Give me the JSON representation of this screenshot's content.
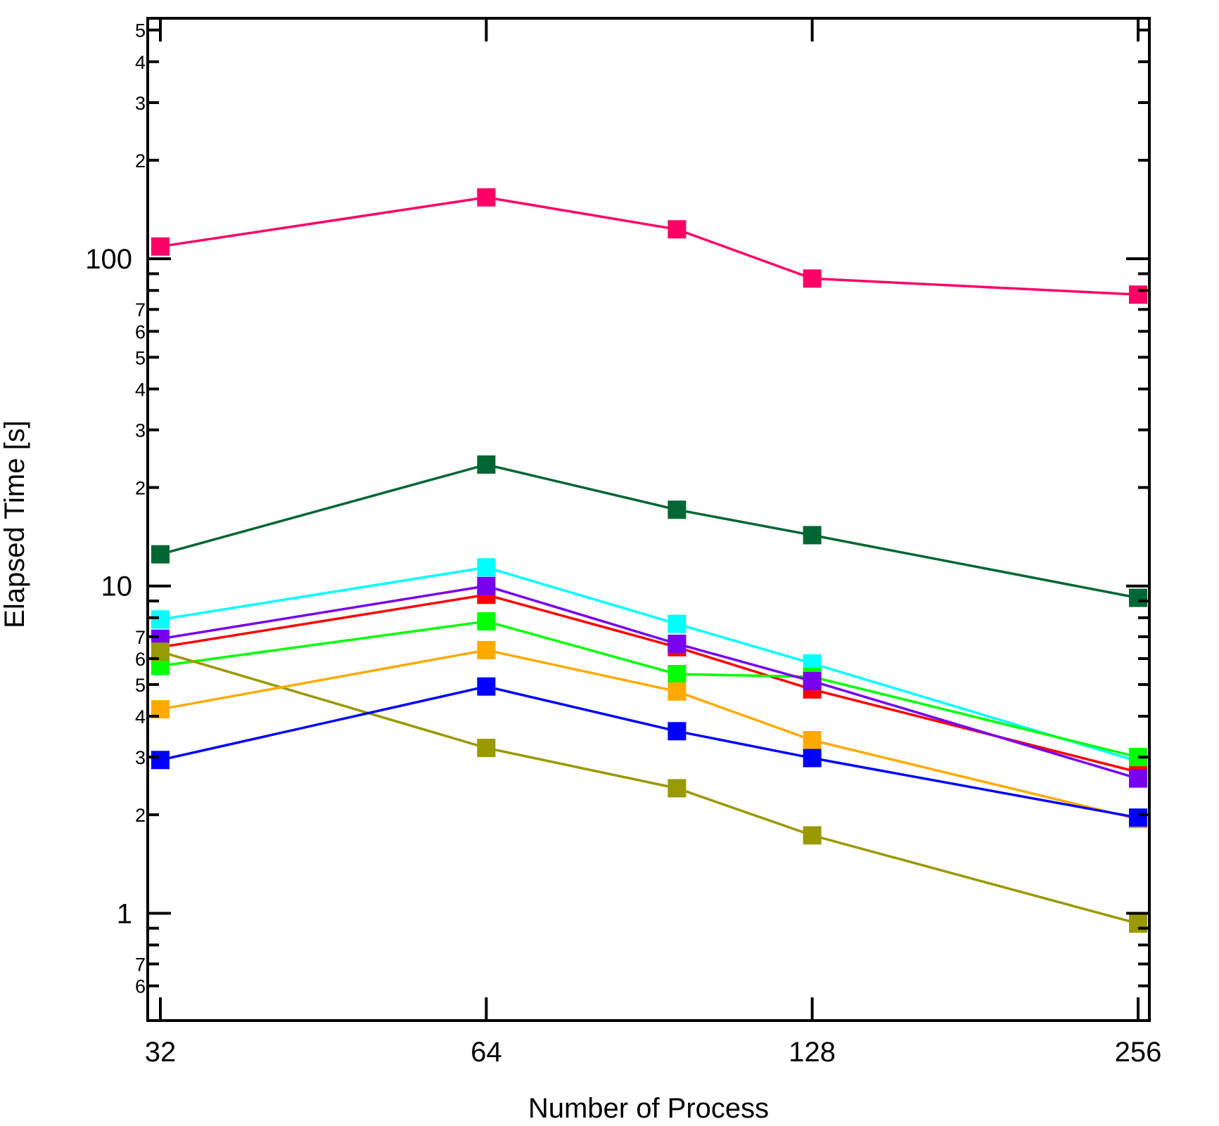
{
  "chart_data": {
    "type": "line",
    "title": "",
    "xlabel": "Number of Process",
    "ylabel": "Elapsed Time [s]",
    "xscale": "log2",
    "yscale": "log10",
    "x": [
      32,
      64,
      96,
      128,
      256
    ],
    "xticks": [
      32,
      64,
      128,
      256
    ],
    "xtick_labels": [
      "32",
      "64",
      "128",
      "256"
    ],
    "xlim": [
      31,
      262
    ],
    "ylim": [
      0.47,
      543
    ],
    "ytick_major": [
      1,
      10,
      100
    ],
    "ytick_major_labels": [
      "1",
      "10",
      "100"
    ],
    "ytick_minor_labeled": [
      {
        "value": 0.6,
        "label": "6"
      },
      {
        "value": 0.7,
        "label": "7"
      },
      {
        "value": 2,
        "label": "2"
      },
      {
        "value": 3,
        "label": "3"
      },
      {
        "value": 4,
        "label": "4"
      },
      {
        "value": 5,
        "label": "5"
      },
      {
        "value": 6,
        "label": "6"
      },
      {
        "value": 7,
        "label": "7"
      },
      {
        "value": 20,
        "label": "2"
      },
      {
        "value": 30,
        "label": "3"
      },
      {
        "value": 40,
        "label": "4"
      },
      {
        "value": 50,
        "label": "5"
      },
      {
        "value": 60,
        "label": "6"
      },
      {
        "value": 70,
        "label": "7"
      },
      {
        "value": 200,
        "label": "2"
      },
      {
        "value": 300,
        "label": "3"
      },
      {
        "value": 400,
        "label": "4"
      },
      {
        "value": 500,
        "label": "5"
      }
    ],
    "ytick_minor_unlabeled": [
      0.8,
      0.9,
      8,
      9,
      80,
      90
    ],
    "grid": false,
    "legend": "none",
    "marker": "square",
    "series": [
      {
        "name": "magenta",
        "color": "#ff0066",
        "values": [
          109,
          154,
          123,
          87,
          77.7
        ]
      },
      {
        "name": "dark-green",
        "color": "#006633",
        "values": [
          12.5,
          23.5,
          17.1,
          14.3,
          9.2
        ]
      },
      {
        "name": "cyan",
        "color": "#00ffff",
        "values": [
          7.9,
          11.4,
          7.66,
          5.8,
          2.91
        ]
      },
      {
        "name": "red",
        "color": "#ff0000",
        "values": [
          6.5,
          9.4,
          6.5,
          4.83,
          2.7
        ]
      },
      {
        "name": "green",
        "color": "#00ff00",
        "values": [
          5.7,
          7.8,
          5.38,
          5.28,
          3.0
        ]
      },
      {
        "name": "purple",
        "color": "#7700ee",
        "values": [
          6.9,
          10.0,
          6.66,
          5.12,
          2.58
        ]
      },
      {
        "name": "olive",
        "color": "#999900",
        "values": [
          6.3,
          3.2,
          2.41,
          1.73,
          0.93
        ]
      },
      {
        "name": "orange",
        "color": "#ffaa00",
        "values": [
          4.2,
          6.37,
          4.76,
          3.38,
          1.94
        ]
      },
      {
        "name": "blue",
        "color": "#0000ff",
        "values": [
          2.94,
          4.93,
          3.6,
          2.98,
          1.96
        ]
      }
    ]
  }
}
